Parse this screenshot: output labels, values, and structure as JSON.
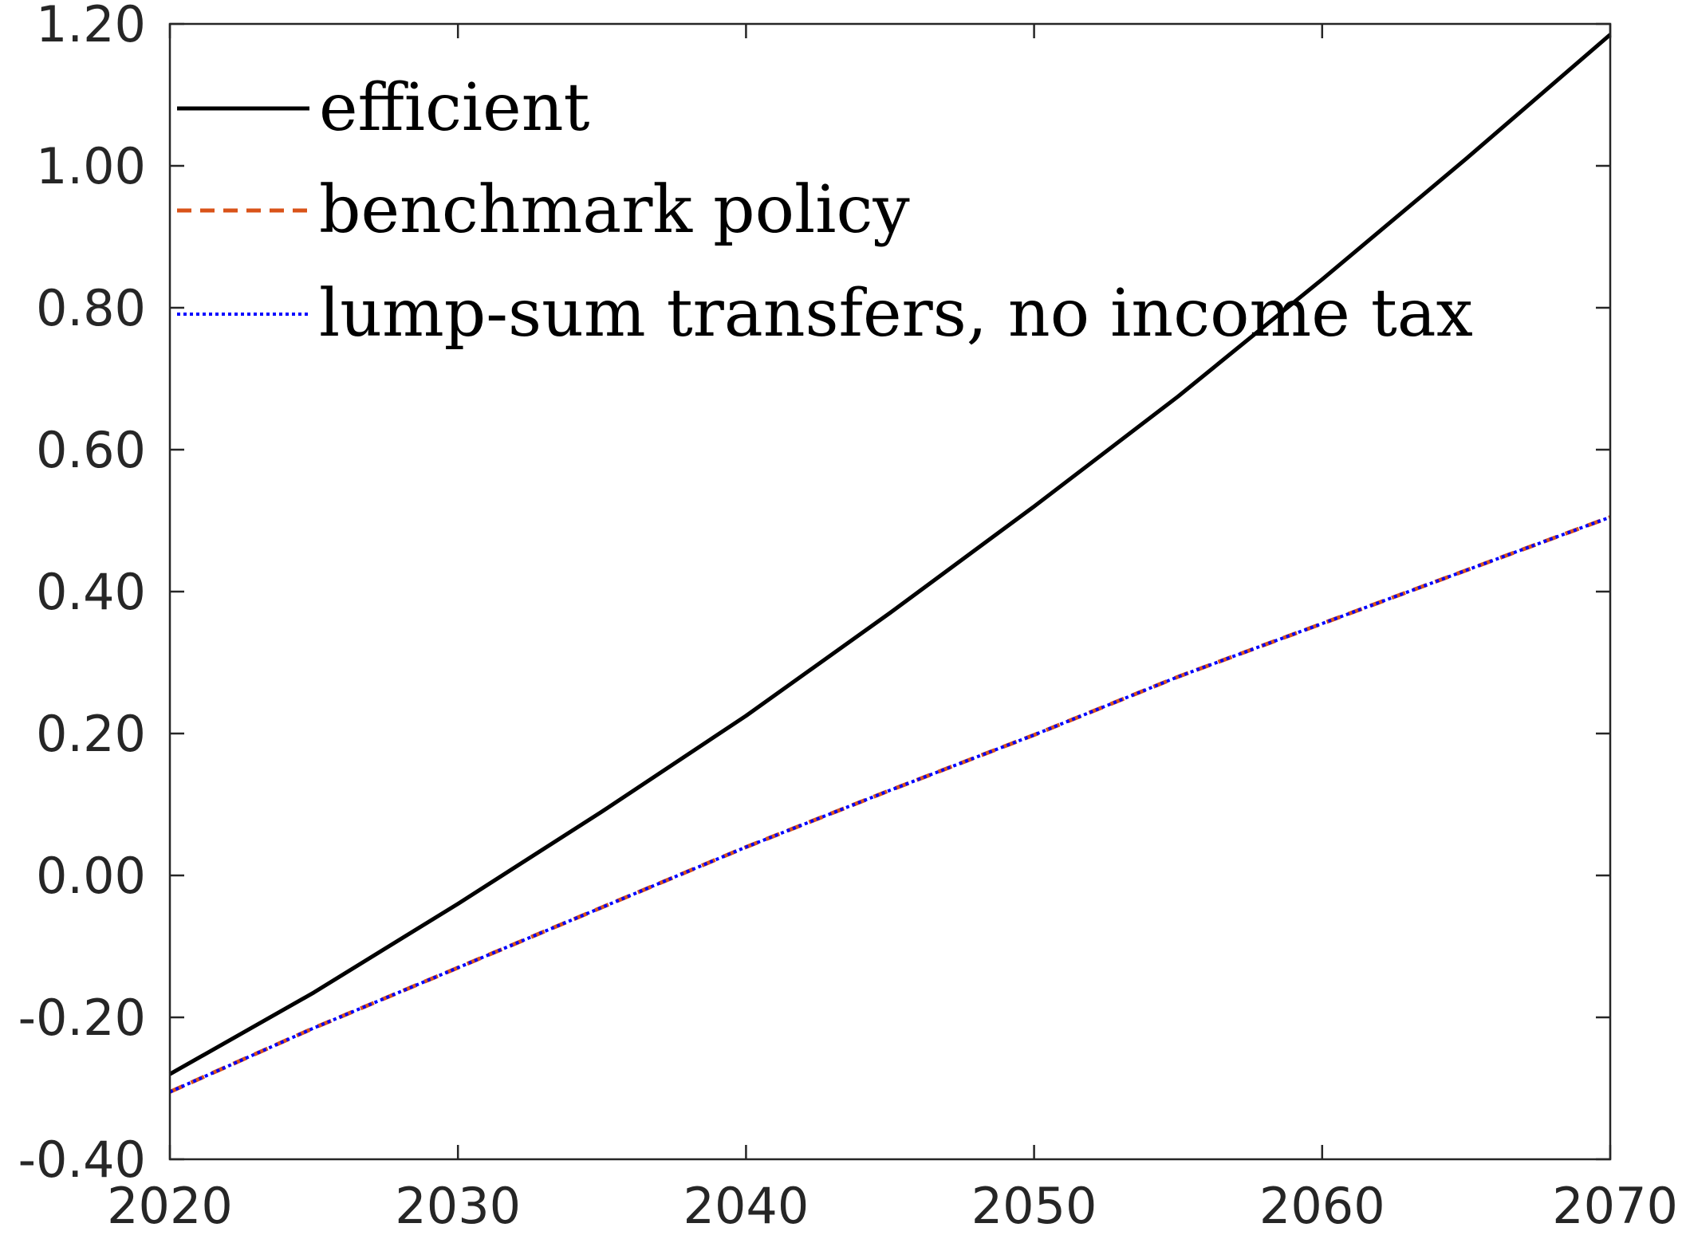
{
  "chart_data": {
    "type": "line",
    "title": "",
    "xlabel": "",
    "ylabel": "",
    "xlim": [
      2020,
      2070
    ],
    "ylim": [
      -0.4,
      1.2
    ],
    "xticks": [
      2020,
      2030,
      2040,
      2050,
      2060,
      2070
    ],
    "xtick_labels": [
      "2020",
      "2030",
      "2040",
      "2050",
      "2060",
      "2070"
    ],
    "yticks": [
      -0.4,
      -0.2,
      0.0,
      0.2,
      0.4,
      0.6,
      0.8,
      1.0,
      1.2
    ],
    "ytick_labels": [
      "-0.40",
      "-0.20",
      "0.00",
      "0.20",
      "0.40",
      "0.60",
      "0.80",
      "1.00",
      "1.20"
    ],
    "grid": false,
    "legend_position": "top-left",
    "series": [
      {
        "name": "efficient",
        "color": "#000000",
        "style": "solid",
        "x": [
          2020,
          2025,
          2030,
          2035,
          2040,
          2045,
          2050,
          2055,
          2060,
          2065,
          2070
        ],
        "y": [
          -0.28,
          -0.165,
          -0.04,
          0.09,
          0.225,
          0.37,
          0.52,
          0.675,
          0.84,
          1.01,
          1.185
        ]
      },
      {
        "name": "benchmark policy",
        "color": "#D95319",
        "style": "dashed",
        "x": [
          2020,
          2025,
          2030,
          2035,
          2040,
          2045,
          2050,
          2055,
          2060,
          2065,
          2070
        ],
        "y": [
          -0.305,
          -0.215,
          -0.13,
          -0.045,
          0.04,
          0.12,
          0.198,
          0.28,
          0.355,
          0.43,
          0.505
        ]
      },
      {
        "name": "lump-sum transfers, no income tax",
        "color": "#0000FF",
        "style": "dotted",
        "x": [
          2020,
          2025,
          2030,
          2035,
          2040,
          2045,
          2050,
          2055,
          2060,
          2065,
          2070
        ],
        "y": [
          -0.305,
          -0.215,
          -0.13,
          -0.045,
          0.04,
          0.12,
          0.198,
          0.28,
          0.355,
          0.43,
          0.505
        ]
      }
    ]
  }
}
